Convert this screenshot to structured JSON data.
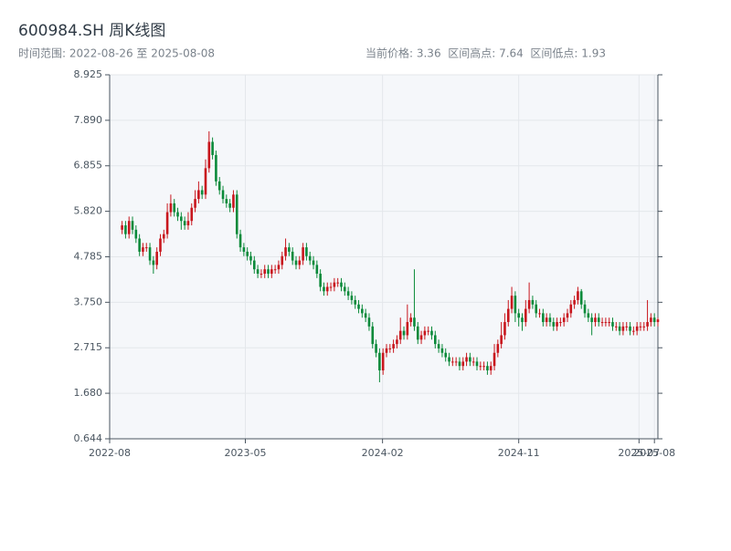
{
  "chart_data": {
    "type": "candlestick",
    "title": "600984.SH 周K线图",
    "subtitle": "时间范围: 2022-08-26 至 2025-08-08",
    "info": "当前价格: 3.36  区间高点: 7.64  区间低点: 1.93",
    "up_color": "#c8161d",
    "down_color": "#0b8a3a",
    "grid": true,
    "xlim": [
      "2022-08-01",
      "2025-08-08"
    ],
    "xticks": [
      {
        "value": "2022-08-01",
        "label": "2022-08"
      },
      {
        "value": "2023-05-01",
        "label": "2023-05"
      },
      {
        "value": "2024-02-01",
        "label": "2024-02"
      },
      {
        "value": "2024-11-01",
        "label": "2024-11"
      },
      {
        "value": "2025-07-01",
        "label": "2025-07"
      },
      {
        "value": "2025-08-01",
        "label": "2025-08"
      }
    ],
    "ylim": [
      0.644,
      8.925
    ],
    "yticks": [
      0.644,
      {
        "value": 1.68,
        "label": "1.680"
      },
      2.715,
      {
        "value": 3.75,
        "label": "3.750"
      },
      4.785,
      {
        "value": 5.82,
        "label": "5.820"
      },
      6.855,
      {
        "value": 7.89,
        "label": "7.890"
      },
      8.925
    ],
    "x": [
      "2022-08-26",
      "2022-09-02",
      "2022-09-09",
      "2022-09-16",
      "2022-09-23",
      "2022-09-30",
      "2022-10-07",
      "2022-10-14",
      "2022-10-21",
      "2022-10-28",
      "2022-11-04",
      "2022-11-11",
      "2022-11-18",
      "2022-11-25",
      "2022-12-02",
      "2022-12-09",
      "2022-12-16",
      "2022-12-23",
      "2022-12-30",
      "2023-01-06",
      "2023-01-13",
      "2023-01-20",
      "2023-01-27",
      "2023-02-03",
      "2023-02-10",
      "2023-02-17",
      "2023-02-24",
      "2023-03-03",
      "2023-03-10",
      "2023-03-17",
      "2023-03-24",
      "2023-03-31",
      "2023-04-07",
      "2023-04-14",
      "2023-04-21",
      "2023-04-28",
      "2023-05-05",
      "2023-05-12",
      "2023-05-19",
      "2023-05-26",
      "2023-06-02",
      "2023-06-09",
      "2023-06-16",
      "2023-06-23",
      "2023-06-30",
      "2023-07-07",
      "2023-07-14",
      "2023-07-21",
      "2023-07-28",
      "2023-08-04",
      "2023-08-11",
      "2023-08-18",
      "2023-08-25",
      "2023-09-01",
      "2023-09-08",
      "2023-09-15",
      "2023-09-22",
      "2023-09-29",
      "2023-10-06",
      "2023-10-13",
      "2023-10-20",
      "2023-10-27",
      "2023-11-03",
      "2023-11-10",
      "2023-11-17",
      "2023-11-24",
      "2023-12-01",
      "2023-12-08",
      "2023-12-15",
      "2023-12-22",
      "2023-12-29",
      "2024-01-05",
      "2024-01-12",
      "2024-01-19",
      "2024-01-26",
      "2024-02-02",
      "2024-02-09",
      "2024-02-16",
      "2024-02-23",
      "2024-03-01",
      "2024-03-08",
      "2024-03-15",
      "2024-03-22",
      "2024-03-29",
      "2024-04-05",
      "2024-04-12",
      "2024-04-19",
      "2024-04-26",
      "2024-05-03",
      "2024-05-10",
      "2024-05-17",
      "2024-05-24",
      "2024-05-31",
      "2024-06-07",
      "2024-06-14",
      "2024-06-21",
      "2024-06-28",
      "2024-07-05",
      "2024-07-12",
      "2024-07-19",
      "2024-07-26",
      "2024-08-02",
      "2024-08-09",
      "2024-08-16",
      "2024-08-23",
      "2024-08-30",
      "2024-09-06",
      "2024-09-13",
      "2024-09-20",
      "2024-09-27",
      "2024-10-04",
      "2024-10-11",
      "2024-10-18",
      "2024-10-25",
      "2024-11-01",
      "2024-11-08",
      "2024-11-15",
      "2024-11-22",
      "2024-11-29",
      "2024-12-06",
      "2024-12-13",
      "2024-12-20",
      "2024-12-27",
      "2025-01-03",
      "2025-01-10",
      "2025-01-17",
      "2025-01-24",
      "2025-01-31",
      "2025-02-07",
      "2025-02-14",
      "2025-02-21",
      "2025-02-28",
      "2025-03-07",
      "2025-03-14",
      "2025-03-21",
      "2025-03-28",
      "2025-04-04",
      "2025-04-11",
      "2025-04-18",
      "2025-04-25",
      "2025-05-02",
      "2025-05-09",
      "2025-05-16",
      "2025-05-23",
      "2025-05-30",
      "2025-06-06",
      "2025-06-13",
      "2025-06-20",
      "2025-06-27",
      "2025-07-04",
      "2025-07-11",
      "2025-07-18",
      "2025-07-25",
      "2025-08-01",
      "2025-08-08"
    ],
    "ohlc": [
      [
        5.4,
        5.6,
        5.3,
        5.5
      ],
      [
        5.5,
        5.6,
        5.2,
        5.3
      ],
      [
        5.3,
        5.7,
        5.2,
        5.6
      ],
      [
        5.6,
        5.7,
        5.3,
        5.4
      ],
      [
        5.4,
        5.5,
        5.1,
        5.2
      ],
      [
        5.2,
        5.3,
        4.8,
        4.9
      ],
      [
        4.9,
        5.1,
        4.8,
        5.0
      ],
      [
        5.0,
        5.1,
        4.9,
        5.0
      ],
      [
        5.0,
        5.1,
        4.6,
        4.7
      ],
      [
        4.7,
        4.8,
        4.4,
        4.6
      ],
      [
        4.6,
        5.0,
        4.5,
        4.9
      ],
      [
        4.9,
        5.3,
        4.8,
        5.2
      ],
      [
        5.2,
        5.4,
        5.1,
        5.3
      ],
      [
        5.3,
        6.0,
        5.2,
        5.8
      ],
      [
        5.8,
        6.2,
        5.7,
        6.0
      ],
      [
        6.0,
        6.1,
        5.7,
        5.8
      ],
      [
        5.8,
        5.9,
        5.6,
        5.7
      ],
      [
        5.7,
        5.8,
        5.4,
        5.6
      ],
      [
        5.6,
        5.7,
        5.4,
        5.5
      ],
      [
        5.5,
        5.8,
        5.4,
        5.6
      ],
      [
        5.6,
        6.0,
        5.5,
        5.9
      ],
      [
        5.9,
        6.3,
        5.8,
        6.1
      ],
      [
        6.1,
        6.5,
        6.0,
        6.3
      ],
      [
        6.3,
        6.4,
        6.1,
        6.2
      ],
      [
        6.2,
        7.0,
        6.1,
        6.8
      ],
      [
        6.8,
        7.64,
        6.7,
        7.4
      ],
      [
        7.4,
        7.5,
        7.0,
        7.1
      ],
      [
        7.1,
        7.2,
        6.4,
        6.5
      ],
      [
        6.5,
        6.6,
        6.2,
        6.3
      ],
      [
        6.3,
        6.4,
        6.0,
        6.1
      ],
      [
        6.1,
        6.2,
        5.9,
        6.0
      ],
      [
        6.0,
        6.1,
        5.8,
        5.9
      ],
      [
        5.9,
        6.3,
        5.8,
        6.2
      ],
      [
        6.2,
        6.3,
        5.2,
        5.3
      ],
      [
        5.3,
        5.4,
        4.9,
        5.0
      ],
      [
        5.0,
        5.1,
        4.8,
        4.9
      ],
      [
        4.9,
        5.0,
        4.7,
        4.8
      ],
      [
        4.8,
        4.9,
        4.6,
        4.7
      ],
      [
        4.7,
        4.8,
        4.4,
        4.5
      ],
      [
        4.5,
        4.6,
        4.3,
        4.4
      ],
      [
        4.4,
        4.5,
        4.3,
        4.4
      ],
      [
        4.4,
        4.6,
        4.3,
        4.5
      ],
      [
        4.5,
        4.6,
        4.3,
        4.4
      ],
      [
        4.4,
        4.6,
        4.3,
        4.5
      ],
      [
        4.5,
        4.6,
        4.4,
        4.5
      ],
      [
        4.5,
        4.7,
        4.4,
        4.6
      ],
      [
        4.6,
        4.9,
        4.5,
        4.8
      ],
      [
        4.8,
        5.2,
        4.7,
        5.0
      ],
      [
        5.0,
        5.1,
        4.8,
        4.9
      ],
      [
        4.9,
        5.0,
        4.6,
        4.7
      ],
      [
        4.7,
        4.8,
        4.5,
        4.6
      ],
      [
        4.6,
        4.8,
        4.5,
        4.7
      ],
      [
        4.7,
        5.1,
        4.6,
        5.0
      ],
      [
        5.0,
        5.1,
        4.7,
        4.8
      ],
      [
        4.8,
        4.9,
        4.6,
        4.7
      ],
      [
        4.7,
        4.8,
        4.5,
        4.6
      ],
      [
        4.6,
        4.7,
        4.3,
        4.4
      ],
      [
        4.4,
        4.5,
        4.0,
        4.1
      ],
      [
        4.1,
        4.2,
        3.9,
        4.0
      ],
      [
        4.0,
        4.2,
        3.9,
        4.1
      ],
      [
        4.1,
        4.2,
        4.0,
        4.1
      ],
      [
        4.1,
        4.3,
        4.0,
        4.2
      ],
      [
        4.2,
        4.3,
        4.1,
        4.2
      ],
      [
        4.2,
        4.3,
        4.0,
        4.1
      ],
      [
        4.1,
        4.2,
        3.9,
        4.0
      ],
      [
        4.0,
        4.1,
        3.8,
        3.9
      ],
      [
        3.9,
        4.0,
        3.7,
        3.8
      ],
      [
        3.8,
        3.9,
        3.6,
        3.7
      ],
      [
        3.7,
        3.8,
        3.5,
        3.6
      ],
      [
        3.6,
        3.7,
        3.4,
        3.5
      ],
      [
        3.5,
        3.6,
        3.3,
        3.4
      ],
      [
        3.4,
        3.5,
        3.1,
        3.2
      ],
      [
        3.2,
        3.3,
        2.7,
        2.8
      ],
      [
        2.8,
        2.9,
        2.5,
        2.6
      ],
      [
        2.6,
        2.7,
        1.93,
        2.2
      ],
      [
        2.2,
        2.7,
        2.1,
        2.6
      ],
      [
        2.6,
        2.8,
        2.5,
        2.7
      ],
      [
        2.7,
        2.8,
        2.6,
        2.7
      ],
      [
        2.7,
        2.9,
        2.6,
        2.8
      ],
      [
        2.8,
        3.0,
        2.7,
        2.9
      ],
      [
        2.9,
        3.4,
        2.8,
        3.1
      ],
      [
        3.1,
        3.2,
        2.9,
        3.0
      ],
      [
        3.0,
        3.7,
        2.9,
        3.3
      ],
      [
        3.3,
        3.5,
        3.2,
        3.4
      ],
      [
        3.4,
        4.5,
        3.1,
        3.2
      ],
      [
        3.2,
        3.3,
        2.8,
        2.9
      ],
      [
        2.9,
        3.1,
        2.8,
        3.0
      ],
      [
        3.0,
        3.2,
        2.9,
        3.1
      ],
      [
        3.1,
        3.2,
        3.0,
        3.1
      ],
      [
        3.1,
        3.2,
        2.9,
        3.0
      ],
      [
        3.0,
        3.1,
        2.7,
        2.8
      ],
      [
        2.8,
        2.9,
        2.6,
        2.7
      ],
      [
        2.7,
        2.8,
        2.5,
        2.6
      ],
      [
        2.6,
        2.7,
        2.4,
        2.5
      ],
      [
        2.5,
        2.6,
        2.3,
        2.4
      ],
      [
        2.4,
        2.5,
        2.3,
        2.4
      ],
      [
        2.4,
        2.5,
        2.3,
        2.4
      ],
      [
        2.4,
        2.5,
        2.2,
        2.3
      ],
      [
        2.3,
        2.5,
        2.2,
        2.4
      ],
      [
        2.4,
        2.6,
        2.3,
        2.5
      ],
      [
        2.5,
        2.6,
        2.3,
        2.4
      ],
      [
        2.4,
        2.5,
        2.3,
        2.4
      ],
      [
        2.4,
        2.5,
        2.2,
        2.3
      ],
      [
        2.3,
        2.4,
        2.2,
        2.3
      ],
      [
        2.3,
        2.4,
        2.2,
        2.3
      ],
      [
        2.3,
        2.4,
        2.1,
        2.2
      ],
      [
        2.2,
        2.4,
        2.1,
        2.3
      ],
      [
        2.3,
        2.8,
        2.2,
        2.6
      ],
      [
        2.6,
        2.9,
        2.5,
        2.8
      ],
      [
        2.8,
        3.3,
        2.7,
        3.0
      ],
      [
        3.0,
        3.5,
        2.9,
        3.3
      ],
      [
        3.3,
        3.8,
        3.2,
        3.6
      ],
      [
        3.6,
        4.1,
        3.5,
        3.9
      ],
      [
        3.9,
        4.0,
        3.3,
        3.5
      ],
      [
        3.5,
        3.6,
        3.2,
        3.4
      ],
      [
        3.4,
        3.5,
        3.1,
        3.3
      ],
      [
        3.3,
        3.8,
        3.2,
        3.6
      ],
      [
        3.6,
        4.2,
        3.5,
        3.8
      ],
      [
        3.8,
        3.9,
        3.6,
        3.7
      ],
      [
        3.7,
        3.8,
        3.4,
        3.5
      ],
      [
        3.5,
        3.6,
        3.4,
        3.5
      ],
      [
        3.5,
        3.6,
        3.2,
        3.3
      ],
      [
        3.3,
        3.5,
        3.2,
        3.4
      ],
      [
        3.4,
        3.5,
        3.2,
        3.3
      ],
      [
        3.3,
        3.4,
        3.1,
        3.2
      ],
      [
        3.2,
        3.4,
        3.1,
        3.3
      ],
      [
        3.3,
        3.4,
        3.2,
        3.3
      ],
      [
        3.3,
        3.5,
        3.2,
        3.4
      ],
      [
        3.4,
        3.6,
        3.3,
        3.5
      ],
      [
        3.5,
        3.8,
        3.4,
        3.7
      ],
      [
        3.7,
        3.9,
        3.6,
        3.8
      ],
      [
        3.8,
        4.1,
        3.7,
        4.0
      ],
      [
        4.0,
        4.05,
        3.6,
        3.7
      ],
      [
        3.7,
        3.8,
        3.4,
        3.5
      ],
      [
        3.5,
        3.6,
        3.3,
        3.4
      ],
      [
        3.4,
        3.5,
        3.0,
        3.3
      ],
      [
        3.3,
        3.5,
        3.2,
        3.4
      ],
      [
        3.4,
        3.5,
        3.2,
        3.3
      ],
      [
        3.3,
        3.4,
        3.2,
        3.3
      ],
      [
        3.3,
        3.4,
        3.2,
        3.3
      ],
      [
        3.3,
        3.4,
        3.2,
        3.3
      ],
      [
        3.3,
        3.4,
        3.1,
        3.2
      ],
      [
        3.2,
        3.3,
        3.1,
        3.2
      ],
      [
        3.2,
        3.3,
        3.0,
        3.1
      ],
      [
        3.1,
        3.3,
        3.0,
        3.2
      ],
      [
        3.2,
        3.3,
        3.1,
        3.2
      ],
      [
        3.2,
        3.3,
        3.0,
        3.1
      ],
      [
        3.1,
        3.2,
        3.0,
        3.1
      ],
      [
        3.1,
        3.3,
        3.0,
        3.2
      ],
      [
        3.2,
        3.3,
        3.1,
        3.2
      ],
      [
        3.2,
        3.3,
        3.1,
        3.2
      ],
      [
        3.2,
        3.8,
        3.1,
        3.3
      ],
      [
        3.3,
        3.5,
        3.2,
        3.4
      ],
      [
        3.4,
        3.5,
        3.2,
        3.3
      ],
      [
        3.3,
        3.4,
        3.2,
        3.36
      ]
    ]
  }
}
